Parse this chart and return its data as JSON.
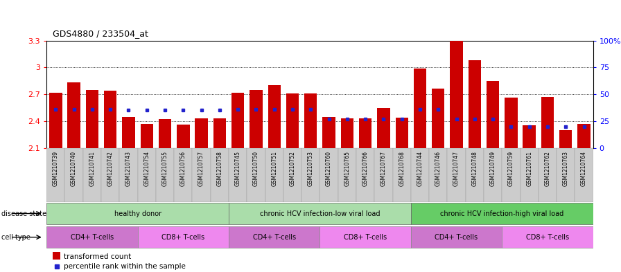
{
  "title": "GDS4880 / 233504_at",
  "samples": [
    "GSM1210739",
    "GSM1210740",
    "GSM1210741",
    "GSM1210742",
    "GSM1210743",
    "GSM1210754",
    "GSM1210755",
    "GSM1210756",
    "GSM1210757",
    "GSM1210758",
    "GSM1210745",
    "GSM1210750",
    "GSM1210751",
    "GSM1210752",
    "GSM1210753",
    "GSM1210760",
    "GSM1210765",
    "GSM1210766",
    "GSM1210767",
    "GSM1210768",
    "GSM1210744",
    "GSM1210746",
    "GSM1210747",
    "GSM1210748",
    "GSM1210749",
    "GSM1210759",
    "GSM1210761",
    "GSM1210762",
    "GSM1210763",
    "GSM1210764"
  ],
  "transformed_count": [
    2.72,
    2.83,
    2.75,
    2.74,
    2.45,
    2.37,
    2.42,
    2.36,
    2.43,
    2.43,
    2.72,
    2.75,
    2.8,
    2.71,
    2.71,
    2.45,
    2.43,
    2.43,
    2.55,
    2.44,
    2.99,
    2.76,
    3.3,
    3.08,
    2.85,
    2.66,
    2.35,
    2.67,
    2.3,
    2.37
  ],
  "percentile_rank": [
    36,
    36,
    36,
    36,
    35,
    35,
    35,
    35,
    35,
    35,
    36,
    36,
    36,
    36,
    36,
    27,
    27,
    27,
    27,
    27,
    36,
    36,
    27,
    27,
    27,
    20,
    20,
    20,
    20,
    20
  ],
  "ylim_left": [
    2.1,
    3.3
  ],
  "ylim_right": [
    0,
    100
  ],
  "yticks_left": [
    2.1,
    2.4,
    2.7,
    3.0,
    3.3
  ],
  "ytick_labels_left": [
    "2.1",
    "2.4",
    "2.7",
    "3",
    "3.3"
  ],
  "yticks_right": [
    0,
    25,
    50,
    75,
    100
  ],
  "ytick_labels_right": [
    "0",
    "25",
    "50",
    "75",
    "100%"
  ],
  "bar_color": "#cc0000",
  "percentile_color": "#2222cc",
  "xtick_bg": "#cccccc",
  "disease_states": [
    {
      "label": "healthy donor",
      "start": 0,
      "end": 9,
      "color": "#aaddaa"
    },
    {
      "label": "chronic HCV infection-low viral load",
      "start": 10,
      "end": 19,
      "color": "#aaddaa"
    },
    {
      "label": "chronic HCV infection-high viral load",
      "start": 20,
      "end": 29,
      "color": "#66cc66"
    }
  ],
  "cell_types": [
    {
      "label": "CD4+ T-cells",
      "start": 0,
      "end": 4,
      "color": "#cc77cc"
    },
    {
      "label": "CD8+ T-cells",
      "start": 5,
      "end": 9,
      "color": "#ee88ee"
    },
    {
      "label": "CD4+ T-cells",
      "start": 10,
      "end": 14,
      "color": "#cc77cc"
    },
    {
      "label": "CD8+ T-cells",
      "start": 15,
      "end": 19,
      "color": "#ee88ee"
    },
    {
      "label": "CD4+ T-cells",
      "start": 20,
      "end": 24,
      "color": "#cc77cc"
    },
    {
      "label": "CD8+ T-cells",
      "start": 25,
      "end": 29,
      "color": "#ee88ee"
    }
  ],
  "legend_items": [
    {
      "label": "transformed count",
      "color": "#cc0000"
    },
    {
      "label": "percentile rank within the sample",
      "color": "#2222cc"
    }
  ]
}
